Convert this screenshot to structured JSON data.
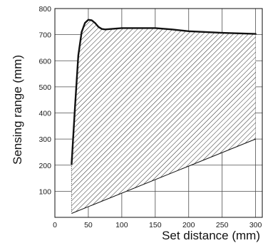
{
  "chart_data": {
    "type": "area",
    "xlabel": "Set distance (mm)",
    "ylabel": "Sensing range (mm)",
    "xlim": [
      0,
      310
    ],
    "ylim": [
      0,
      800
    ],
    "x_ticks": [
      0,
      50,
      100,
      150,
      200,
      250,
      300
    ],
    "y_ticks": [
      100,
      200,
      300,
      400,
      500,
      600,
      700,
      800
    ],
    "x_tick_labels": [
      "0",
      "50",
      "100",
      "150",
      "200",
      "250",
      "300"
    ],
    "y_tick_labels": [
      "100",
      "200",
      "300",
      "400",
      "500",
      "600",
      "700",
      "800"
    ],
    "grid": true,
    "legend": "none",
    "series": [
      {
        "role": "upper-boundary",
        "x": [
          25,
          30,
          35,
          40,
          45,
          50,
          55,
          60,
          65,
          70,
          75,
          80,
          100,
          150,
          175,
          200,
          250,
          300
        ],
        "y": [
          205,
          420,
          620,
          710,
          745,
          757,
          755,
          745,
          730,
          722,
          720,
          721,
          725,
          725,
          720,
          713,
          707,
          703
        ]
      },
      {
        "role": "lower-boundary",
        "x": [
          25,
          300
        ],
        "y": [
          15,
          300
        ]
      }
    ],
    "fill_colors": {
      "hatch": "#2a2a2a",
      "boundary": "#111111",
      "grid": "#4d4d4d",
      "background": "#ffffff"
    }
  }
}
